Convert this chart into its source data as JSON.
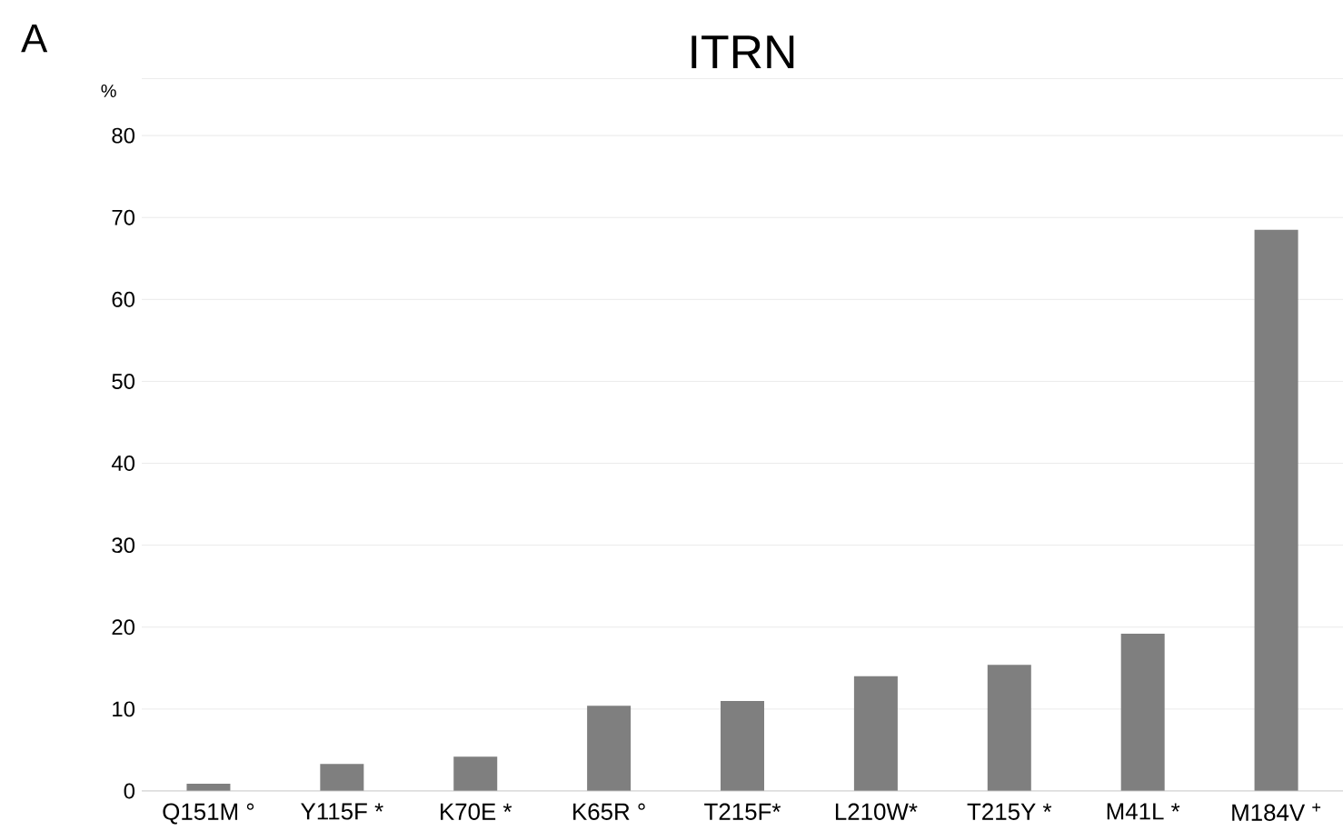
{
  "chart_data": {
    "type": "bar",
    "title": "ITRN",
    "ylabel": "%",
    "annotations": [
      "A"
    ],
    "categories": [
      "Q151M °",
      "Y115F *",
      "K70E *",
      "K65R °",
      "T215F*",
      "L210W*",
      "T215Y *",
      "M41L *",
      "M184V $^{+}$"
    ],
    "values": [
      0.9,
      3.3,
      4.2,
      10.4,
      11,
      14,
      15.4,
      19.2,
      68.5
    ],
    "color": "#7f7f7f",
    "ylim": [
      0,
      87
    ],
    "yticks": [
      0,
      10,
      20,
      30,
      40,
      50,
      60,
      70,
      80
    ],
    "grid": "y"
  }
}
